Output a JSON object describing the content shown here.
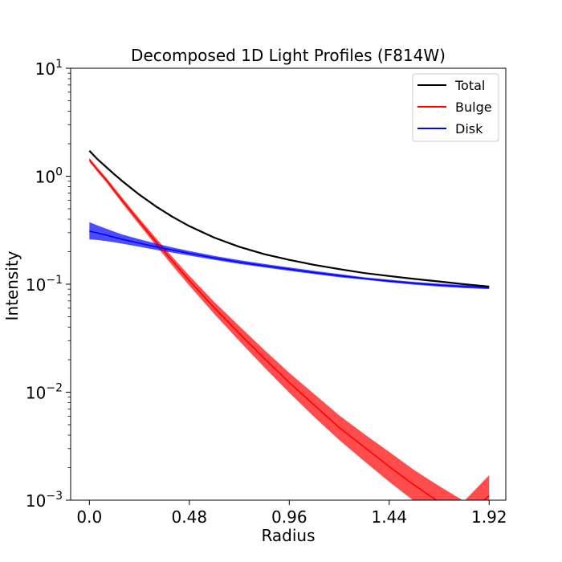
{
  "chart_data": {
    "type": "line",
    "title": "Decomposed 1D Light Profiles (F814W)",
    "xlabel": "Radius",
    "ylabel": "Intensity",
    "xlim": [
      -0.09,
      2.0
    ],
    "ylim": [
      0.001,
      10
    ],
    "yscale": "log",
    "x_ticks": [
      {
        "value": 0.0,
        "label": "0.0"
      },
      {
        "value": 0.48,
        "label": "0.48"
      },
      {
        "value": 0.96,
        "label": "0.96"
      },
      {
        "value": 1.44,
        "label": "1.44"
      },
      {
        "value": 1.92,
        "label": "1.92"
      }
    ],
    "y_ticks": [
      {
        "value": 10,
        "base": "10",
        "exp": "1"
      },
      {
        "value": 1,
        "base": "10",
        "exp": "0"
      },
      {
        "value": 0.1,
        "base": "10",
        "exp": "−1"
      },
      {
        "value": 0.01,
        "base": "10",
        "exp": "−2"
      },
      {
        "value": 0.001,
        "base": "10",
        "exp": "−3"
      }
    ],
    "grid": false,
    "legend": {
      "position": "top-right"
    },
    "x": [
      0.0,
      0.04,
      0.08,
      0.12,
      0.16,
      0.24,
      0.32,
      0.4,
      0.48,
      0.6,
      0.72,
      0.84,
      0.96,
      1.08,
      1.2,
      1.32,
      1.44,
      1.56,
      1.68,
      1.8,
      1.92
    ],
    "series": [
      {
        "name": "Total",
        "color": "#000000",
        "values": [
          1.72,
          1.43,
          1.22,
          1.04,
          0.895,
          0.675,
          0.525,
          0.42,
          0.345,
          0.27,
          0.222,
          0.19,
          0.168,
          0.151,
          0.138,
          0.127,
          0.119,
          0.112,
          0.106,
          0.1,
          0.095
        ]
      },
      {
        "name": "Bulge",
        "color": "#ff0000",
        "values": [
          1.42,
          1.14,
          0.93,
          0.74,
          0.59,
          0.38,
          0.247,
          0.163,
          0.108,
          0.0605,
          0.035,
          0.0205,
          0.0123,
          0.0076,
          0.0047,
          0.0031,
          0.00205,
          0.00138,
          0.00096,
          0.00068,
          0.0011
        ],
        "band_low": [
          1.36,
          1.09,
          0.885,
          0.7,
          0.555,
          0.355,
          0.228,
          0.148,
          0.097,
          0.053,
          0.0298,
          0.017,
          0.0099,
          0.0059,
          0.0036,
          0.0023,
          0.00148,
          0.00098,
          0.00068,
          0.00046,
          0.00068
        ],
        "band_high": [
          1.48,
          1.19,
          0.975,
          0.78,
          0.625,
          0.405,
          0.267,
          0.178,
          0.12,
          0.0685,
          0.041,
          0.0246,
          0.0151,
          0.0096,
          0.0061,
          0.0041,
          0.0028,
          0.0019,
          0.00135,
          0.00098,
          0.0017
        ]
      },
      {
        "name": "Disk",
        "color": "#0000ff",
        "values": [
          0.31,
          0.298,
          0.285,
          0.272,
          0.26,
          0.24,
          0.222,
          0.207,
          0.193,
          0.175,
          0.16,
          0.148,
          0.138,
          0.128,
          0.12,
          0.113,
          0.107,
          0.102,
          0.098,
          0.095,
          0.093
        ],
        "band_low": [
          0.26,
          0.257,
          0.251,
          0.244,
          0.237,
          0.222,
          0.208,
          0.196,
          0.184,
          0.168,
          0.154,
          0.143,
          0.133,
          0.124,
          0.116,
          0.11,
          0.104,
          0.099,
          0.095,
          0.092,
          0.09
        ],
        "band_high": [
          0.375,
          0.35,
          0.327,
          0.306,
          0.288,
          0.261,
          0.238,
          0.219,
          0.203,
          0.183,
          0.167,
          0.154,
          0.143,
          0.133,
          0.124,
          0.116,
          0.11,
          0.105,
          0.101,
          0.098,
          0.096
        ]
      }
    ]
  }
}
